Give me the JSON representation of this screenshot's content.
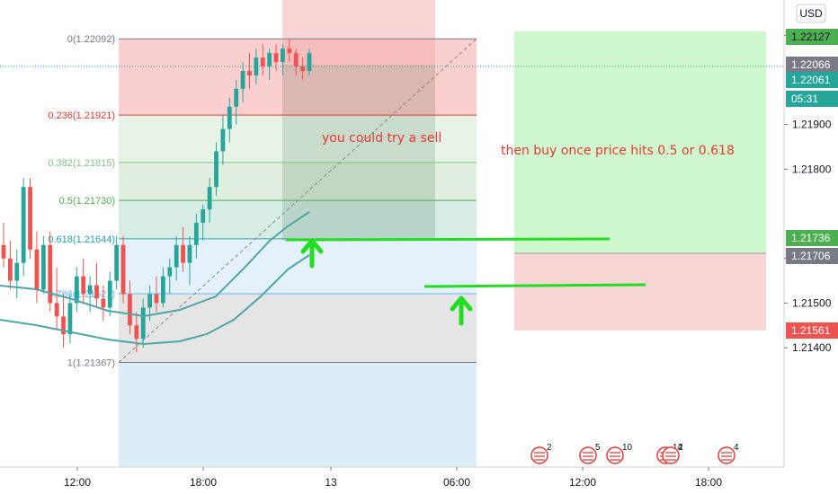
{
  "currency": "USD",
  "colors": {
    "up": "#26a69a",
    "down": "#ef5350",
    "ma": "#4fa6a6",
    "annotation": "#e53935",
    "arrow": "#22dd22",
    "profit": "#c8f7c5",
    "loss": "#f8cfcf"
  },
  "chart_data": {
    "type": "candlestick",
    "ylim": [
      1.2133,
      1.2216
    ],
    "y_ticks": [
      "1.22100",
      "1.21900",
      "1.21800",
      "1.21600",
      "1.21500",
      "1.21400"
    ],
    "x_ticks": [
      "12:00",
      "18:00",
      "13",
      "06:00",
      "12:00",
      "18:00"
    ],
    "price_badges": [
      {
        "value": "1.22127",
        "color": "#4caf50",
        "text_color": "#131722"
      },
      {
        "value": "1.22066",
        "color": "#787b86",
        "text_color": "#ffffff"
      },
      {
        "value": "1.22061",
        "color": "#26a69a",
        "text_color": "#ffffff"
      },
      {
        "value": "05:31",
        "color": "#26a69a",
        "text_color": "#ffffff"
      },
      {
        "value": "1.21736",
        "color": "#4caf50",
        "text_color": "#ffffff"
      },
      {
        "value": "1.21706",
        "color": "#787b86",
        "text_color": "#ffffff"
      },
      {
        "value": "1.21561",
        "color": "#ef5350",
        "text_color": "#ffffff"
      }
    ],
    "fib_levels": [
      {
        "label": "0(1.22092)",
        "value": 1.22092,
        "color": "#787b86"
      },
      {
        "label": "0.236(1.21921)",
        "value": 1.21921,
        "color": "#e53935"
      },
      {
        "label": "0.382(1.21815)",
        "value": 1.21815,
        "color": "#81c784"
      },
      {
        "label": "0.5(1.21730)",
        "value": 1.2173,
        "color": "#4caf50"
      },
      {
        "label": "0.618(1.21644)",
        "value": 1.21644,
        "color": "#26a69a"
      },
      {
        "label": "0.786(1.21521)",
        "value": 1.21521,
        "color": "#64b5f6"
      },
      {
        "label": "1(1.21367)",
        "value": 1.21367,
        "color": "#787b86"
      }
    ],
    "annotations": [
      {
        "text": "you could try a sell"
      },
      {
        "text": "then buy once price hits 0.5 or 0.618"
      }
    ],
    "events": [
      {
        "count": "2"
      },
      {
        "count": "5"
      },
      {
        "count": "10"
      },
      {
        "count": "14"
      },
      {
        "count": "2"
      },
      {
        "count": "4"
      }
    ],
    "candles": [
      [
        1.2163,
        1.2168,
        1.2158,
        1.216
      ],
      [
        1.216,
        1.2164,
        1.2153,
        1.2155
      ],
      [
        1.2155,
        1.2162,
        1.2151,
        1.2159
      ],
      [
        1.2159,
        1.2178,
        1.2156,
        1.2176
      ],
      [
        1.2176,
        1.2178,
        1.216,
        1.2162
      ],
      [
        1.2162,
        1.2166,
        1.215,
        1.2153
      ],
      [
        1.2153,
        1.2165,
        1.2152,
        1.2163
      ],
      [
        1.2163,
        1.2166,
        1.2148,
        1.215
      ],
      [
        1.215,
        1.2158,
        1.2144,
        1.2147
      ],
      [
        1.2147,
        1.2152,
        1.214,
        1.2143
      ],
      [
        1.2143,
        1.2152,
        1.2141,
        1.215
      ],
      [
        1.215,
        1.2158,
        1.2148,
        1.2156
      ],
      [
        1.2156,
        1.216,
        1.215,
        1.2152
      ],
      [
        1.2152,
        1.2156,
        1.2148,
        1.2154
      ],
      [
        1.2154,
        1.2159,
        1.2149,
        1.2151
      ],
      [
        1.2151,
        1.2154,
        1.2146,
        1.2149
      ],
      [
        1.2149,
        1.2157,
        1.2147,
        1.2155
      ],
      [
        1.2155,
        1.2165,
        1.2153,
        1.2163
      ],
      [
        1.2163,
        1.2165,
        1.215,
        1.2152
      ],
      [
        1.2152,
        1.2155,
        1.2143,
        1.2145
      ],
      [
        1.2145,
        1.2148,
        1.2139,
        1.2142
      ],
      [
        1.2142,
        1.2151,
        1.214,
        1.2149
      ],
      [
        1.2149,
        1.2154,
        1.2146,
        1.2152
      ],
      [
        1.2152,
        1.2156,
        1.2148,
        1.215
      ],
      [
        1.215,
        1.2158,
        1.2149,
        1.2156
      ],
      [
        1.2156,
        1.216,
        1.2152,
        1.2158
      ],
      [
        1.2158,
        1.2165,
        1.2155,
        1.2163
      ],
      [
        1.2163,
        1.2167,
        1.2157,
        1.2159
      ],
      [
        1.2159,
        1.2165,
        1.2154,
        1.2163
      ],
      [
        1.2163,
        1.217,
        1.216,
        1.2168
      ],
      [
        1.2168,
        1.2172,
        1.2164,
        1.2171
      ],
      [
        1.2171,
        1.2178,
        1.2168,
        1.2176
      ],
      [
        1.2176,
        1.2186,
        1.2174,
        1.2184
      ],
      [
        1.2184,
        1.2192,
        1.2181,
        1.2189
      ],
      [
        1.2189,
        1.2196,
        1.2186,
        1.2194
      ],
      [
        1.2194,
        1.22,
        1.219,
        1.2198
      ],
      [
        1.2198,
        1.2204,
        1.2195,
        1.2202
      ],
      [
        1.2202,
        1.2206,
        1.2198,
        1.2201
      ],
      [
        1.2201,
        1.2207,
        1.2199,
        1.2205
      ],
      [
        1.2205,
        1.2208,
        1.2201,
        1.2203
      ],
      [
        1.2203,
        1.2207,
        1.22,
        1.2206
      ],
      [
        1.2206,
        1.2208,
        1.2202,
        1.2204
      ],
      [
        1.2204,
        1.2208,
        1.2201,
        1.2207
      ],
      [
        1.2207,
        1.2209,
        1.2204,
        1.2206
      ],
      [
        1.2206,
        1.2207,
        1.2201,
        1.2203
      ],
      [
        1.2203,
        1.2205,
        1.22,
        1.2202
      ],
      [
        1.2202,
        1.2207,
        1.2201,
        1.2206
      ]
    ]
  }
}
